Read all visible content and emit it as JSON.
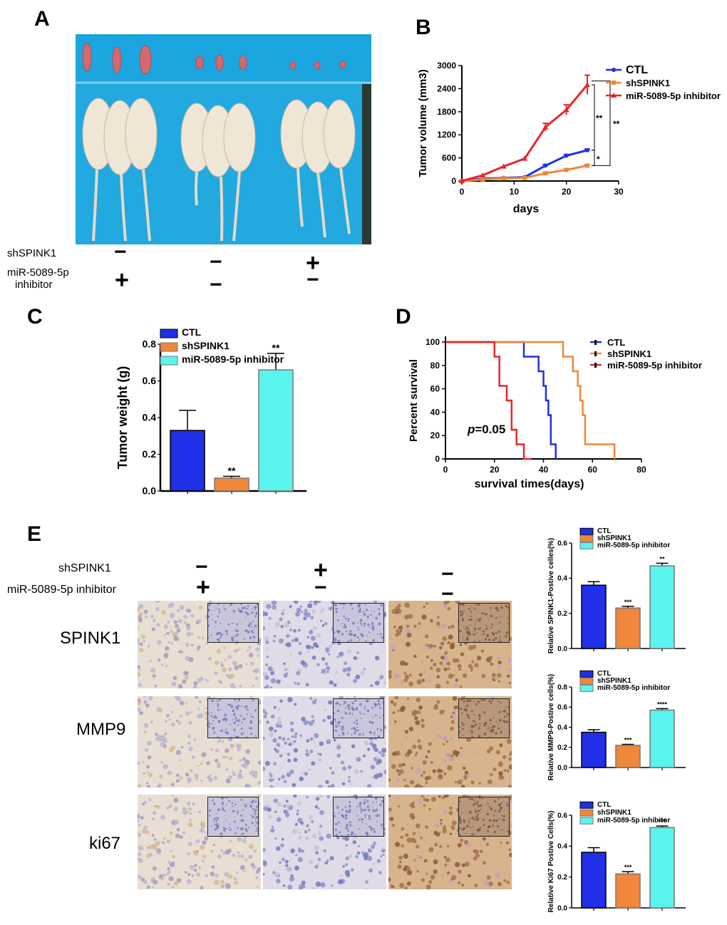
{
  "panels": {
    "A": "A",
    "B": "B",
    "C": "C",
    "D": "D",
    "E": "E"
  },
  "panelA": {
    "row_labels": [
      "shSPINK1",
      "miR-5089-5p",
      "inhibitor"
    ],
    "columns": [
      {
        "shSPINK1": "−",
        "mir": "+"
      },
      {
        "shSPINK1": "−",
        "mir": "−"
      },
      {
        "shSPINK1": "+",
        "mir": "−"
      }
    ]
  },
  "panelE": {
    "row_labels": [
      "shSPINK1",
      "miR-5089-5p inhibitor"
    ],
    "columns": [
      {
        "shSPINK1": "−",
        "mir": "+"
      },
      {
        "shSPINK1": "+",
        "mir": "−"
      },
      {
        "shSPINK1": "−",
        "mir": "−"
      }
    ],
    "stains": [
      "SPINK1",
      "MMP9",
      "ki67"
    ]
  },
  "colors": {
    "ctl_blue": "#1f30e8",
    "sh_orange": "#f0873a",
    "mir_red": "#e8262b",
    "mir_cyan": "#5af4ee"
  },
  "chart_data": [
    {
      "id": "B",
      "type": "line",
      "xlabel": "days",
      "ylabel": "Tumor  volume (mm3)",
      "xlim": [
        0,
        30
      ],
      "ylim": [
        0,
        3000
      ],
      "xticks": [
        "0",
        "10",
        "20",
        "30"
      ],
      "yticks": [
        "0",
        "600",
        "1200",
        "1800",
        "2400",
        "3000"
      ],
      "series": [
        {
          "name": "CTL",
          "x": [
            0,
            4,
            8,
            12,
            16,
            20,
            24
          ],
          "y": [
            0,
            60,
            80,
            100,
            400,
            660,
            800
          ],
          "err": [
            0,
            0,
            0,
            0,
            30,
            30,
            30
          ]
        },
        {
          "name": "shSPINK1",
          "x": [
            0,
            4,
            8,
            12,
            16,
            20,
            24
          ],
          "y": [
            0,
            40,
            70,
            80,
            200,
            290,
            400
          ],
          "err": [
            0,
            0,
            0,
            0,
            20,
            20,
            30
          ]
        },
        {
          "name": "miR-5089-5p inhibitor",
          "x": [
            0,
            4,
            8,
            12,
            16,
            20,
            24
          ],
          "y": [
            0,
            150,
            380,
            580,
            1400,
            1850,
            2500
          ],
          "err": [
            0,
            0,
            0,
            0,
            100,
            130,
            250
          ]
        }
      ],
      "annotations": [
        "**",
        "**",
        "*"
      ]
    },
    {
      "id": "C",
      "type": "bar",
      "ylabel": "Tumor  weight (g)",
      "ylim": [
        0,
        0.8
      ],
      "yticks": [
        "0.0",
        "0.2",
        "0.4",
        "0.6",
        "0.8"
      ],
      "categories": [
        "CTL",
        "shSPINK1",
        "miR-5089-5p inhibitor"
      ],
      "values": [
        0.33,
        0.07,
        0.66
      ],
      "err": [
        0.11,
        0.01,
        0.09
      ],
      "significance": [
        "",
        "**",
        "**"
      ]
    },
    {
      "id": "D",
      "type": "line",
      "xlabel": "survival times(days)",
      "ylabel": "Percent survival",
      "xlim": [
        0,
        80
      ],
      "ylim": [
        0,
        100
      ],
      "xticks": [
        "0",
        "20",
        "40",
        "60",
        "80"
      ],
      "yticks": [
        "0",
        "20",
        "40",
        "60",
        "80",
        "100"
      ],
      "annotation_p": "p",
      "annotation_value": "=0.05",
      "series": [
        {
          "name": "CTL",
          "steps": [
            [
              0,
              100
            ],
            [
              32,
              100
            ],
            [
              32,
              87.5
            ],
            [
              38,
              87.5
            ],
            [
              38,
              75
            ],
            [
              40,
              75
            ],
            [
              40,
              62.5
            ],
            [
              41,
              62.5
            ],
            [
              41,
              50
            ],
            [
              42,
              50
            ],
            [
              42,
              37.5
            ],
            [
              43,
              37.5
            ],
            [
              43,
              12.5
            ],
            [
              45,
              12.5
            ],
            [
              45,
              0
            ]
          ]
        },
        {
          "name": "shSPINK1",
          "steps": [
            [
              0,
              100
            ],
            [
              48,
              100
            ],
            [
              48,
              87.5
            ],
            [
              52,
              87.5
            ],
            [
              52,
              75
            ],
            [
              54,
              75
            ],
            [
              54,
              62.5
            ],
            [
              55,
              62.5
            ],
            [
              55,
              50
            ],
            [
              56,
              50
            ],
            [
              56,
              37.5
            ],
            [
              57,
              37.5
            ],
            [
              57,
              12.5
            ],
            [
              69,
              12.5
            ],
            [
              69,
              0
            ]
          ]
        },
        {
          "name": "miR-5089-5p inhibitor",
          "steps": [
            [
              0,
              100
            ],
            [
              20,
              100
            ],
            [
              20,
              87.5
            ],
            [
              22,
              87.5
            ],
            [
              22,
              62.5
            ],
            [
              25,
              62.5
            ],
            [
              25,
              50
            ],
            [
              27,
              50
            ],
            [
              27,
              25
            ],
            [
              29,
              25
            ],
            [
              29,
              12.5
            ],
            [
              32,
              12.5
            ],
            [
              32,
              0
            ],
            [
              35,
              0
            ]
          ]
        }
      ]
    },
    {
      "id": "E1",
      "type": "bar",
      "ylabel": "Relative SPINK1-Postive celles(%)",
      "ylim": [
        0,
        0.6
      ],
      "yticks": [
        "0.0",
        "0.2",
        "0.4",
        "0.6"
      ],
      "categories": [
        "CTL",
        "shSPINK1",
        "miR-5089-5p inhibitor"
      ],
      "values": [
        0.36,
        0.23,
        0.47
      ],
      "err": [
        0.02,
        0.01,
        0.015
      ],
      "significance": [
        "",
        "***",
        "**"
      ]
    },
    {
      "id": "E2",
      "type": "bar",
      "ylabel": "Relative MMP9-Postive cells(%)",
      "ylim": [
        0,
        0.8
      ],
      "yticks": [
        "0.0",
        "0.2",
        "0.4",
        "0.6",
        "0.8"
      ],
      "categories": [
        "CTL",
        "shSPINK1",
        "miR-5089-5p inhibitor"
      ],
      "values": [
        0.35,
        0.22,
        0.57
      ],
      "err": [
        0.025,
        0.01,
        0.015
      ],
      "significance": [
        "",
        "***",
        "****"
      ]
    },
    {
      "id": "E3",
      "type": "bar",
      "ylabel": "Relative Ki67 Postive Cells(%)",
      "ylim": [
        0,
        0.6
      ],
      "yticks": [
        "0.0",
        "0.2",
        "0.4",
        "0.6"
      ],
      "categories": [
        "CTL",
        "shSPINK1",
        "miR-5089-5p inhibitor"
      ],
      "values": [
        0.36,
        0.22,
        0.52
      ],
      "err": [
        0.03,
        0.015,
        0.01
      ],
      "significance": [
        "",
        "***",
        "***"
      ]
    }
  ]
}
